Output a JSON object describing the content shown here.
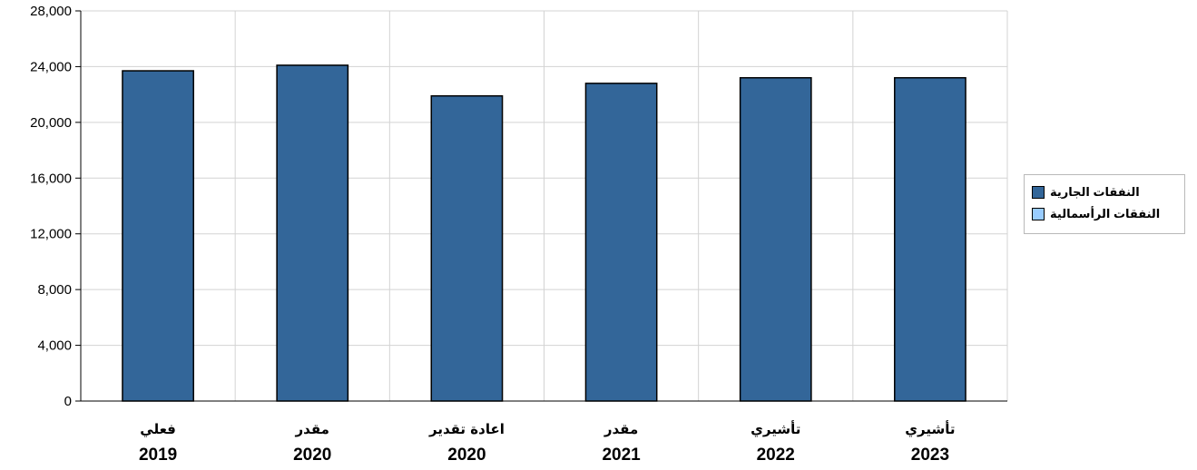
{
  "chart_data": {
    "type": "bar",
    "categories": [
      [
        "فعلي",
        "2019"
      ],
      [
        "مقدر",
        "2020"
      ],
      [
        "اعادة تقدير",
        "2020"
      ],
      [
        "مقدر",
        "2021"
      ],
      [
        "تأشيري",
        "2022"
      ],
      [
        "تأشيري",
        "2023"
      ]
    ],
    "series": [
      {
        "name": "النفقات الجارية",
        "color": "#336699",
        "values": [
          23700,
          24100,
          21900,
          22800,
          23200,
          23200
        ]
      },
      {
        "name": "النفقات الرأسمالية",
        "color": "#99ccff",
        "values": [
          0,
          0,
          0,
          0,
          0,
          0
        ]
      }
    ],
    "yticks": [
      "0",
      "4,000",
      "8,000",
      "12,000",
      "16,000",
      "20,000",
      "24,000",
      "28,000"
    ],
    "ylim": [
      0,
      28000
    ],
    "grid": true,
    "legend_position": "right"
  }
}
